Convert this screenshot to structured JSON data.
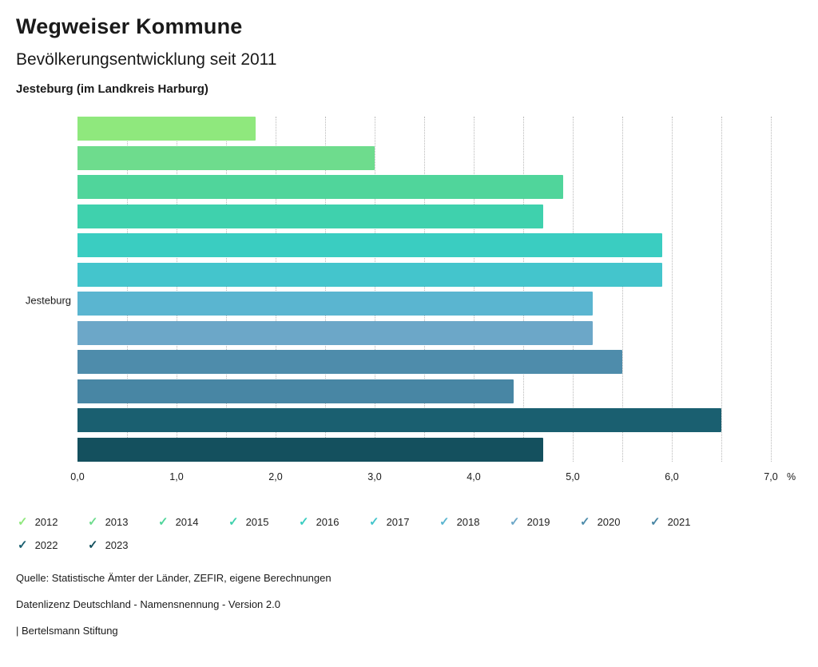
{
  "header": {
    "title": "Wegweiser Kommune",
    "subtitle": "Bevölkerungsentwicklung seit 2011",
    "location": "Jesteburg (im Landkreis Harburg)"
  },
  "chart_data": {
    "type": "bar",
    "orientation": "horizontal",
    "group_label": "Jesteburg",
    "categories": [
      "2012",
      "2013",
      "2014",
      "2015",
      "2016",
      "2017",
      "2018",
      "2019",
      "2020",
      "2021",
      "2022",
      "2023"
    ],
    "values": [
      1.8,
      3.0,
      4.9,
      4.7,
      5.9,
      5.9,
      5.2,
      5.2,
      5.5,
      4.4,
      6.5,
      4.7
    ],
    "colors": [
      "#8fe87d",
      "#6edc8d",
      "#50d59b",
      "#3fd1ad",
      "#3acdc1",
      "#44c5cc",
      "#5ab5d0",
      "#6ca7c8",
      "#4e8cab",
      "#4886a4",
      "#1a5f70",
      "#14505e"
    ],
    "xlim": [
      0,
      7
    ],
    "x_tick_values": [
      0,
      1,
      2,
      3,
      4,
      5,
      6,
      7
    ],
    "x_tick_labels": [
      "0,0",
      "1,0",
      "2,0",
      "3,0",
      "4,0",
      "5,0",
      "6,0",
      "7,0"
    ],
    "x_unit": "%",
    "gridline_step": 0.5,
    "grid": true,
    "legend_position": "bottom",
    "title": "Bevölkerungsentwicklung seit 2011",
    "xlabel": "%",
    "ylabel": "Jesteburg"
  },
  "footer": {
    "line1": "Quelle: Statistische Ämter der Länder, ZEFIR, eigene Berechnungen",
    "line2": "Datenlizenz Deutschland - Namensnennung - Version 2.0",
    "line3": "| Bertelsmann Stiftung"
  }
}
